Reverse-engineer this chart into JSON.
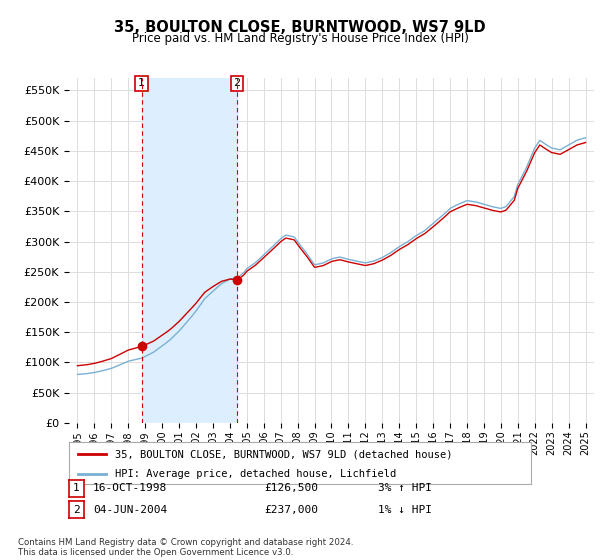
{
  "title": "35, BOULTON CLOSE, BURNTWOOD, WS7 9LD",
  "subtitle": "Price paid vs. HM Land Registry's House Price Index (HPI)",
  "legend_line1": "35, BOULTON CLOSE, BURNTWOOD, WS7 9LD (detached house)",
  "legend_line2": "HPI: Average price, detached house, Lichfield",
  "sale1_date_label": "16-OCT-1998",
  "sale1_price": 126500,
  "sale1_pct": "3% ↑ HPI",
  "sale2_date_label": "04-JUN-2004",
  "sale2_price": 237000,
  "sale2_pct": "1% ↓ HPI",
  "sale1_x": 1998.79,
  "sale2_x": 2004.42,
  "note": "Contains HM Land Registry data © Crown copyright and database right 2024.\nThis data is licensed under the Open Government Licence v3.0.",
  "ylim": [
    0,
    570000
  ],
  "xlim": [
    1994.5,
    2025.5
  ],
  "red_color": "#cc0000",
  "blue_color": "#7ab0d4",
  "shade_color": "#ddeeff",
  "grid_color": "#dddddd",
  "bg_color": "#ffffff"
}
